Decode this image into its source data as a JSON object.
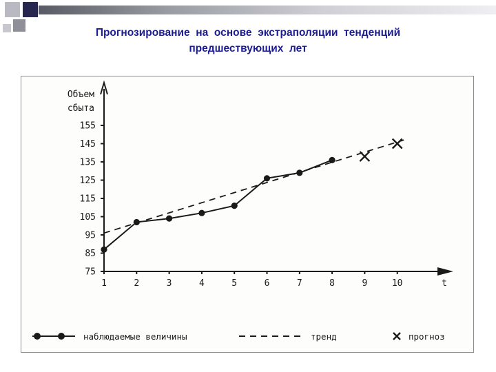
{
  "slide": {
    "title_line1": "Прогнозирование на основе экстраполяции тенденций",
    "title_line2": "предшествующих лет"
  },
  "chart_data": {
    "type": "line",
    "title": "Прогнозирование на основе экстраполяции тенденций предшествующих лет",
    "ylabel_lines": [
      "Объем",
      "сбыта"
    ],
    "ylabel": "Объем сбыта",
    "xlabel": "t",
    "x_ticks": [
      1,
      2,
      3,
      4,
      5,
      6,
      7,
      8,
      9,
      10
    ],
    "y_ticks": [
      75,
      85,
      95,
      105,
      115,
      125,
      135,
      145,
      155
    ],
    "xlim": [
      1,
      10.5
    ],
    "ylim": [
      75,
      160
    ],
    "grid": false,
    "legend_position": "bottom",
    "series": [
      {
        "name": "наблюдаемые величины",
        "style": "solid-circles",
        "x": [
          1,
          2,
          3,
          4,
          5,
          6,
          7,
          8
        ],
        "values": [
          87,
          102,
          104,
          107,
          111,
          126,
          129,
          136
        ]
      },
      {
        "name": "тренд",
        "style": "dashed-line",
        "x": [
          1,
          10.2
        ],
        "values": [
          96,
          147
        ]
      },
      {
        "name": "прогноз",
        "style": "x-markers",
        "x": [
          9,
          10
        ],
        "values": [
          138,
          145
        ]
      }
    ]
  }
}
